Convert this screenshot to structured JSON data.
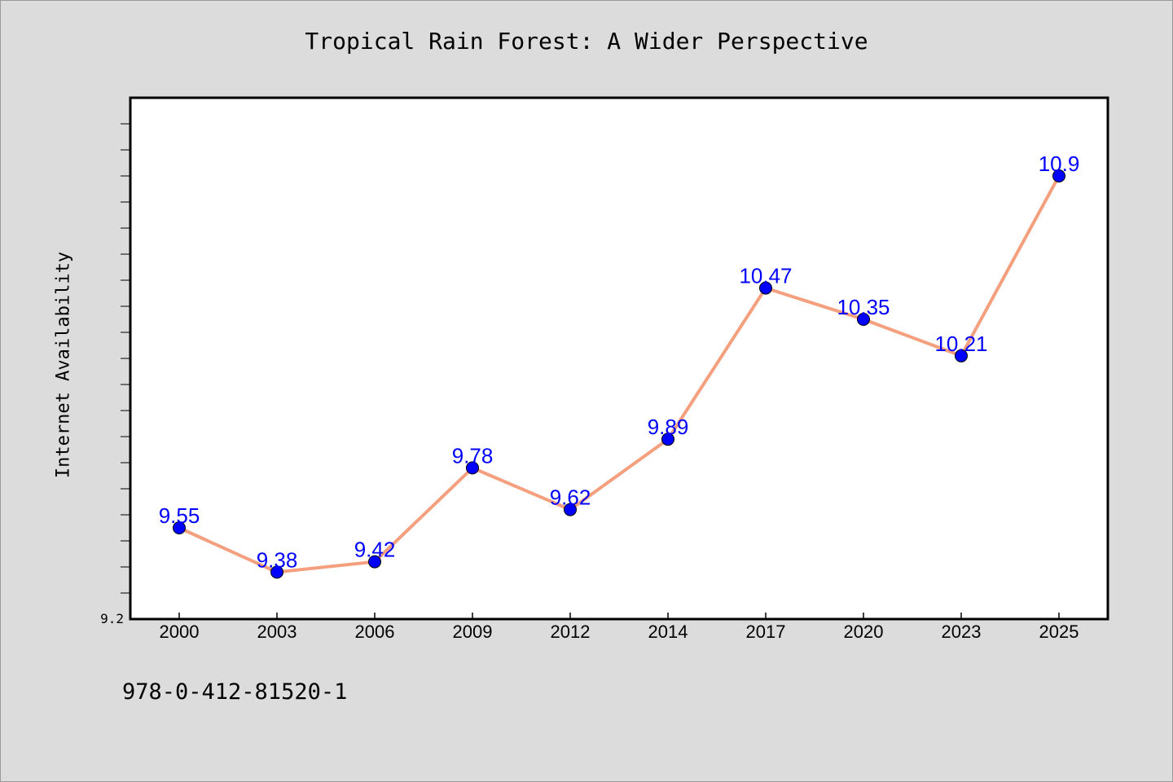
{
  "isbn": "978-0-412-81520-1",
  "chart_data": {
    "type": "line",
    "title": "Tropical Rain Forest: A Wider Perspective",
    "ylabel": "Internet Availability",
    "xlabel": "",
    "categories": [
      "2000",
      "2003",
      "2006",
      "2009",
      "2012",
      "2014",
      "2017",
      "2020",
      "2023",
      "2025"
    ],
    "series": [
      {
        "values": [
          9.55,
          9.38,
          9.42,
          9.78,
          9.62,
          9.89,
          10.47,
          10.35,
          10.21,
          10.9
        ]
      }
    ],
    "data_labels": [
      "9.55",
      "9.38",
      "9.42",
      "9.78",
      "9.62",
      "9.89",
      "10.47",
      "10.35",
      "10.21",
      "10.9"
    ],
    "ylim": [
      9.2,
      11.2
    ],
    "y_tick_labels": [
      "9.2"
    ],
    "grid": false,
    "line_color": "#f4a07e",
    "marker_color": "#0000ff",
    "label_color": "#0000ff",
    "plot_background": "#ffffff",
    "figure_background": "#dcdcdc"
  }
}
